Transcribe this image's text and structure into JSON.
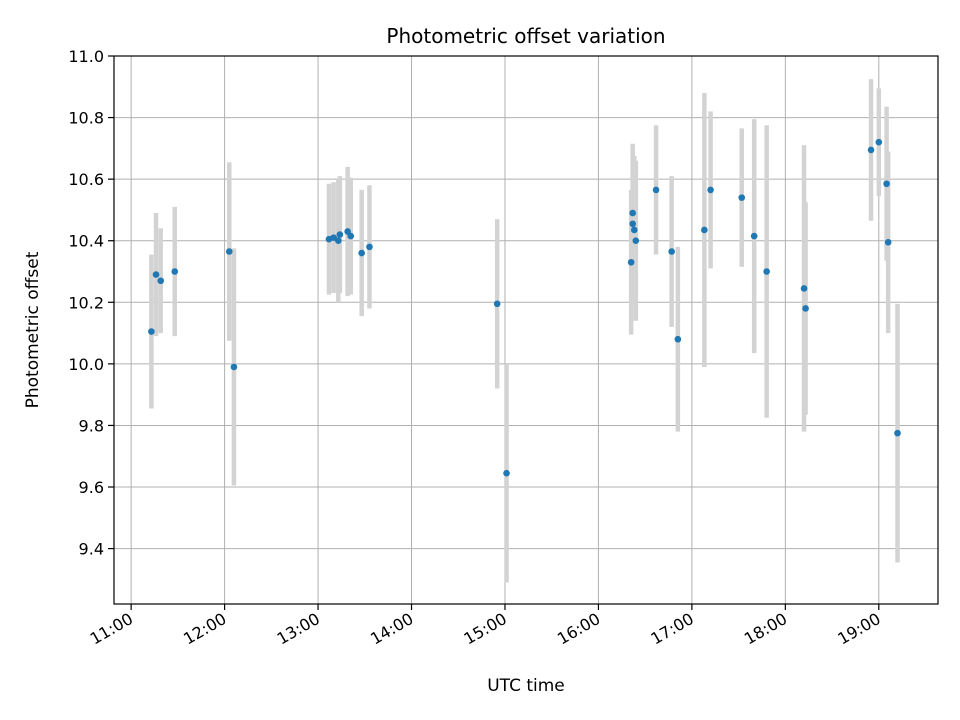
{
  "chart_data": {
    "type": "scatter",
    "title": "Photometric offset variation",
    "xlabel": "UTC time",
    "ylabel": "Photometric offset",
    "x_unit": "hours UTC",
    "xlim": [
      "10:49",
      "19:38"
    ],
    "ylim": [
      9.22,
      11.0
    ],
    "x_ticks": [
      "11:00",
      "12:00",
      "13:00",
      "14:00",
      "15:00",
      "16:00",
      "17:00",
      "18:00",
      "19:00"
    ],
    "y_ticks": [
      "9.4",
      "9.6",
      "9.8",
      "10.0",
      "10.2",
      "10.4",
      "10.6",
      "10.8",
      "11.0"
    ],
    "grid": true,
    "legend": "none",
    "colors": {
      "point": "#1f77b4",
      "errorbar": "#d3d3d3",
      "grid": "#b0b0b0"
    },
    "points": [
      {
        "time": "11:13",
        "y": 10.105,
        "err": 0.25
      },
      {
        "time": "11:16",
        "y": 10.29,
        "err": 0.2
      },
      {
        "time": "11:19",
        "y": 10.27,
        "err": 0.17
      },
      {
        "time": "11:28",
        "y": 10.3,
        "err": 0.21
      },
      {
        "time": "12:03",
        "y": 10.365,
        "err": 0.29
      },
      {
        "time": "12:06",
        "y": 9.99,
        "err": 0.385
      },
      {
        "time": "13:07",
        "y": 10.405,
        "err": 0.18
      },
      {
        "time": "13:10",
        "y": 10.41,
        "err": 0.18
      },
      {
        "time": "13:13",
        "y": 10.4,
        "err": 0.2
      },
      {
        "time": "13:14",
        "y": 10.42,
        "err": 0.19
      },
      {
        "time": "13:19",
        "y": 10.43,
        "err": 0.21
      },
      {
        "time": "13:21",
        "y": 10.415,
        "err": 0.19
      },
      {
        "time": "13:28",
        "y": 10.36,
        "err": 0.205
      },
      {
        "time": "13:33",
        "y": 10.38,
        "err": 0.2
      },
      {
        "time": "14:55",
        "y": 10.195,
        "err": 0.275
      },
      {
        "time": "15:01",
        "y": 9.645,
        "err": 0.355
      },
      {
        "time": "16:21",
        "y": 10.33,
        "err": 0.235
      },
      {
        "time": "16:22",
        "y": 10.49,
        "err": 0.225
      },
      {
        "time": "16:22",
        "y": 10.455,
        "err": 0.25
      },
      {
        "time": "16:23",
        "y": 10.435,
        "err": 0.24
      },
      {
        "time": "16:24",
        "y": 10.4,
        "err": 0.26
      },
      {
        "time": "16:37",
        "y": 10.565,
        "err": 0.21
      },
      {
        "time": "16:47",
        "y": 10.365,
        "err": 0.245
      },
      {
        "time": "16:51",
        "y": 10.08,
        "err": 0.3
      },
      {
        "time": "17:08",
        "y": 10.435,
        "err": 0.445
      },
      {
        "time": "17:12",
        "y": 10.565,
        "err": 0.255
      },
      {
        "time": "17:32",
        "y": 10.54,
        "err": 0.225
      },
      {
        "time": "17:40",
        "y": 10.415,
        "err": 0.38
      },
      {
        "time": "17:48",
        "y": 10.3,
        "err": 0.475
      },
      {
        "time": "18:12",
        "y": 10.245,
        "err": 0.465
      },
      {
        "time": "18:13",
        "y": 10.18,
        "err": 0.345
      },
      {
        "time": "18:55",
        "y": 10.695,
        "err": 0.23
      },
      {
        "time": "19:00",
        "y": 10.72,
        "err": 0.175
      },
      {
        "time": "19:05",
        "y": 10.585,
        "err": 0.25
      },
      {
        "time": "19:06",
        "y": 10.395,
        "err": 0.295
      },
      {
        "time": "19:12",
        "y": 9.775,
        "err": 0.42
      }
    ]
  }
}
